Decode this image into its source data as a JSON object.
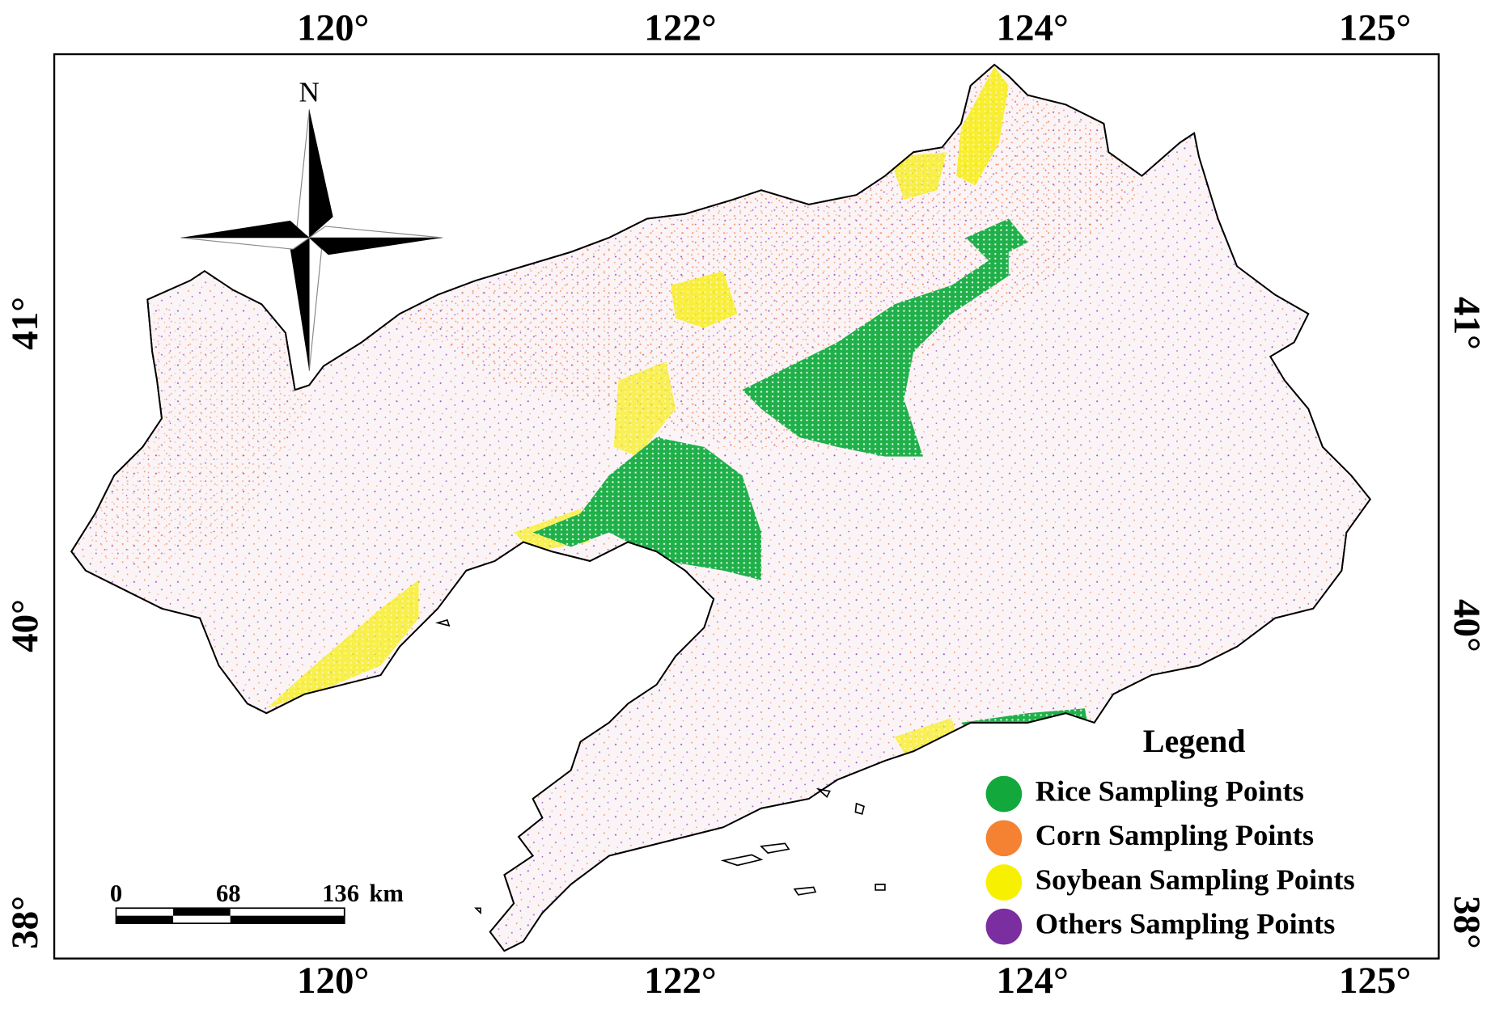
{
  "map": {
    "top_labels": [
      "120°",
      "122°",
      "124°",
      "125°"
    ],
    "bottom_labels": [
      "120°",
      "122°",
      "124°",
      "125°"
    ],
    "left_labels": [
      "41°",
      "40°",
      "38°"
    ],
    "right_labels": [
      "41°",
      "40°",
      "38°"
    ],
    "compass_label": "N",
    "scale_bar": {
      "ticks": [
        "0",
        "68",
        "136"
      ],
      "unit": "km"
    },
    "legend": {
      "title": "Legend",
      "items": [
        {
          "label": "Rice Sampling Points",
          "color": "#12a83c"
        },
        {
          "label": "Corn Sampling Points",
          "color": "#f58233"
        },
        {
          "label": "Soybean Sampling Points",
          "color": "#f7f000"
        },
        {
          "label": "Others Sampling Points",
          "color": "#7a2ea0"
        }
      ]
    }
  }
}
